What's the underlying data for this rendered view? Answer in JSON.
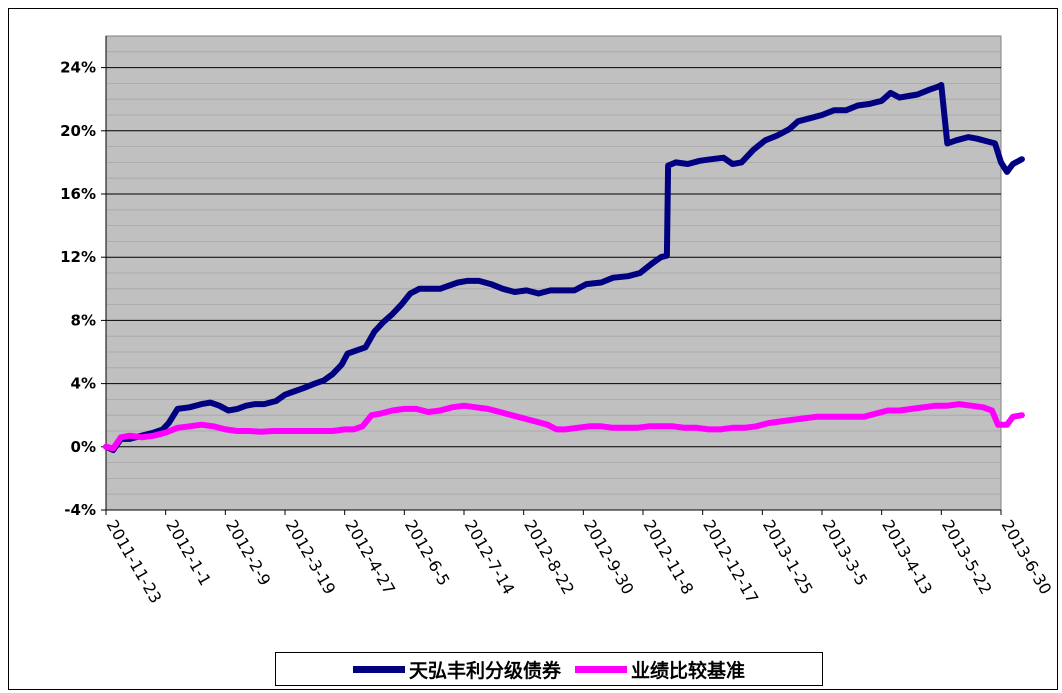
{
  "chart_data": {
    "type": "line",
    "title": "",
    "xlabel": "",
    "ylabel": "",
    "ylim": [
      -4,
      26
    ],
    "y_ticks": [
      -4,
      0,
      4,
      8,
      12,
      16,
      20,
      24
    ],
    "y_tick_labels": [
      "-4%",
      "0%",
      "4%",
      "8%",
      "12%",
      "16%",
      "20%",
      "24%"
    ],
    "x_categories": [
      "2011-11-23",
      "2012-1-1",
      "2012-2-9",
      "2012-3-19",
      "2012-4-27",
      "2012-6-5",
      "2012-7-14",
      "2012-8-22",
      "2012-9-30",
      "2012-11-8",
      "2012-12-17",
      "2013-1-25",
      "2013-3-5",
      "2013-4-13",
      "2013-5-22",
      "2013-6-30"
    ],
    "plot_background": "#c0c0c0",
    "grid": "horizontal",
    "legend_position": "bottom",
    "series": [
      {
        "name": "天弘丰利分级债券",
        "color": "#000080",
        "points": [
          [
            0,
            0
          ],
          [
            0.12,
            -0.2
          ],
          [
            0.25,
            0.5
          ],
          [
            0.4,
            0.5
          ],
          [
            0.6,
            0.7
          ],
          [
            0.8,
            0.9
          ],
          [
            0.95,
            1.1
          ],
          [
            1.05,
            1.5
          ],
          [
            1.2,
            2.4
          ],
          [
            1.4,
            2.5
          ],
          [
            1.6,
            2.7
          ],
          [
            1.75,
            2.8
          ],
          [
            1.9,
            2.6
          ],
          [
            2.05,
            2.3
          ],
          [
            2.2,
            2.4
          ],
          [
            2.35,
            2.6
          ],
          [
            2.5,
            2.7
          ],
          [
            2.65,
            2.7
          ],
          [
            2.85,
            2.9
          ],
          [
            3.0,
            3.3
          ],
          [
            3.15,
            3.5
          ],
          [
            3.3,
            3.7
          ],
          [
            3.5,
            4.0
          ],
          [
            3.65,
            4.2
          ],
          [
            3.8,
            4.6
          ],
          [
            3.95,
            5.2
          ],
          [
            4.05,
            5.9
          ],
          [
            4.2,
            6.1
          ],
          [
            4.35,
            6.3
          ],
          [
            4.5,
            7.3
          ],
          [
            4.65,
            7.9
          ],
          [
            4.8,
            8.4
          ],
          [
            4.95,
            9.0
          ],
          [
            5.1,
            9.7
          ],
          [
            5.25,
            10.0
          ],
          [
            5.45,
            10.0
          ],
          [
            5.6,
            10.0
          ],
          [
            5.75,
            10.2
          ],
          [
            5.9,
            10.4
          ],
          [
            6.05,
            10.5
          ],
          [
            6.25,
            10.5
          ],
          [
            6.45,
            10.3
          ],
          [
            6.65,
            10.0
          ],
          [
            6.85,
            9.8
          ],
          [
            7.05,
            9.9
          ],
          [
            7.25,
            9.7
          ],
          [
            7.45,
            9.9
          ],
          [
            7.65,
            9.9
          ],
          [
            7.85,
            9.9
          ],
          [
            8.05,
            10.3
          ],
          [
            8.3,
            10.4
          ],
          [
            8.5,
            10.7
          ],
          [
            8.75,
            10.8
          ],
          [
            8.95,
            11.0
          ],
          [
            9.15,
            11.6
          ],
          [
            9.3,
            12.0
          ],
          [
            9.4,
            12.1
          ],
          [
            9.42,
            17.8
          ],
          [
            9.55,
            18.0
          ],
          [
            9.75,
            17.9
          ],
          [
            9.95,
            18.1
          ],
          [
            10.15,
            18.2
          ],
          [
            10.35,
            18.3
          ],
          [
            10.5,
            17.9
          ],
          [
            10.65,
            18.0
          ],
          [
            10.85,
            18.8
          ],
          [
            11.05,
            19.4
          ],
          [
            11.25,
            19.7
          ],
          [
            11.45,
            20.1
          ],
          [
            11.6,
            20.6
          ],
          [
            11.8,
            20.8
          ],
          [
            12.0,
            21.0
          ],
          [
            12.2,
            21.3
          ],
          [
            12.4,
            21.3
          ],
          [
            12.6,
            21.6
          ],
          [
            12.8,
            21.7
          ],
          [
            13.0,
            21.9
          ],
          [
            13.15,
            22.4
          ],
          [
            13.3,
            22.1
          ],
          [
            13.45,
            22.2
          ],
          [
            13.6,
            22.3
          ],
          [
            13.8,
            22.6
          ],
          [
            13.95,
            22.8
          ],
          [
            14.0,
            22.9
          ],
          [
            14.1,
            19.2
          ],
          [
            14.25,
            19.4
          ],
          [
            14.45,
            19.6
          ],
          [
            14.6,
            19.5
          ],
          [
            14.8,
            19.3
          ],
          [
            14.9,
            19.2
          ],
          [
            15.0,
            18.0
          ],
          [
            15.1,
            17.4
          ],
          [
            15.2,
            17.9
          ],
          [
            15.35,
            18.2
          ]
        ]
      },
      {
        "name": "业绩比较基准",
        "color": "#ff00ff",
        "points": [
          [
            0,
            0
          ],
          [
            0.12,
            -0.1
          ],
          [
            0.25,
            0.6
          ],
          [
            0.4,
            0.7
          ],
          [
            0.6,
            0.6
          ],
          [
            0.8,
            0.7
          ],
          [
            1.0,
            0.9
          ],
          [
            1.2,
            1.2
          ],
          [
            1.4,
            1.3
          ],
          [
            1.6,
            1.4
          ],
          [
            1.8,
            1.3
          ],
          [
            2.0,
            1.1
          ],
          [
            2.2,
            1.0
          ],
          [
            2.4,
            1.0
          ],
          [
            2.6,
            0.95
          ],
          [
            2.8,
            1.0
          ],
          [
            3.0,
            1.0
          ],
          [
            3.2,
            1.0
          ],
          [
            3.4,
            1.0
          ],
          [
            3.6,
            1.0
          ],
          [
            3.8,
            1.0
          ],
          [
            4.0,
            1.1
          ],
          [
            4.15,
            1.1
          ],
          [
            4.3,
            1.3
          ],
          [
            4.45,
            2.0
          ],
          [
            4.6,
            2.1
          ],
          [
            4.8,
            2.3
          ],
          [
            5.0,
            2.4
          ],
          [
            5.2,
            2.4
          ],
          [
            5.4,
            2.2
          ],
          [
            5.6,
            2.3
          ],
          [
            5.8,
            2.5
          ],
          [
            6.0,
            2.6
          ],
          [
            6.2,
            2.5
          ],
          [
            6.4,
            2.4
          ],
          [
            6.6,
            2.2
          ],
          [
            6.8,
            2.0
          ],
          [
            7.0,
            1.8
          ],
          [
            7.2,
            1.6
          ],
          [
            7.4,
            1.4
          ],
          [
            7.55,
            1.1
          ],
          [
            7.7,
            1.1
          ],
          [
            7.9,
            1.2
          ],
          [
            8.1,
            1.3
          ],
          [
            8.3,
            1.3
          ],
          [
            8.5,
            1.2
          ],
          [
            8.7,
            1.2
          ],
          [
            8.9,
            1.2
          ],
          [
            9.1,
            1.3
          ],
          [
            9.3,
            1.3
          ],
          [
            9.5,
            1.3
          ],
          [
            9.7,
            1.2
          ],
          [
            9.9,
            1.2
          ],
          [
            10.1,
            1.1
          ],
          [
            10.3,
            1.1
          ],
          [
            10.5,
            1.2
          ],
          [
            10.7,
            1.2
          ],
          [
            10.9,
            1.3
          ],
          [
            11.1,
            1.5
          ],
          [
            11.3,
            1.6
          ],
          [
            11.5,
            1.7
          ],
          [
            11.7,
            1.8
          ],
          [
            11.9,
            1.9
          ],
          [
            12.1,
            1.9
          ],
          [
            12.3,
            1.9
          ],
          [
            12.5,
            1.9
          ],
          [
            12.7,
            1.9
          ],
          [
            12.9,
            2.1
          ],
          [
            13.1,
            2.3
          ],
          [
            13.3,
            2.3
          ],
          [
            13.5,
            2.4
          ],
          [
            13.7,
            2.5
          ],
          [
            13.9,
            2.6
          ],
          [
            14.1,
            2.6
          ],
          [
            14.3,
            2.7
          ],
          [
            14.5,
            2.6
          ],
          [
            14.7,
            2.5
          ],
          [
            14.85,
            2.3
          ],
          [
            14.95,
            1.4
          ],
          [
            15.1,
            1.4
          ],
          [
            15.2,
            1.9
          ],
          [
            15.35,
            2.0
          ]
        ]
      }
    ]
  }
}
